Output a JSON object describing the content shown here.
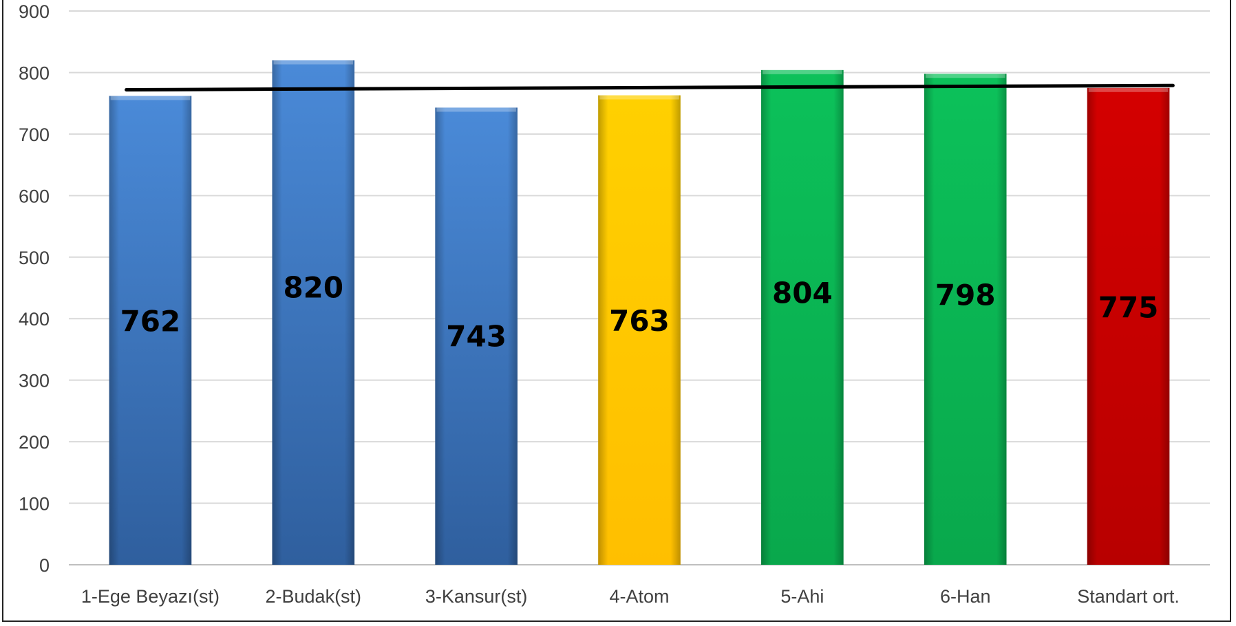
{
  "chart_data": {
    "type": "bar",
    "title": "",
    "xlabel": "",
    "ylabel": "",
    "ylim": [
      0,
      900
    ],
    "yticks": [
      0,
      100,
      200,
      300,
      400,
      500,
      600,
      700,
      800,
      900
    ],
    "grid": true,
    "legend": "none",
    "categories": [
      "1-Ege Beyazı(st)",
      "2-Budak(st)",
      "3-Kansur(st)",
      "4-Atom",
      "5-Ahi",
      "6-Han",
      "Standart ort."
    ],
    "values": [
      762,
      820,
      743,
      763,
      804,
      798,
      775
    ],
    "data_labels": [
      "762",
      "820",
      "743",
      "763",
      "804",
      "798",
      "775"
    ],
    "bar_colors": [
      "#3a78c4",
      "#3a78c4",
      "#3a78c4",
      "#ffc600",
      "#0bb654",
      "#0bb654",
      "#c80000"
    ],
    "trendline": {
      "type": "linear",
      "color": "#000000",
      "start": 772,
      "end": 779
    }
  }
}
